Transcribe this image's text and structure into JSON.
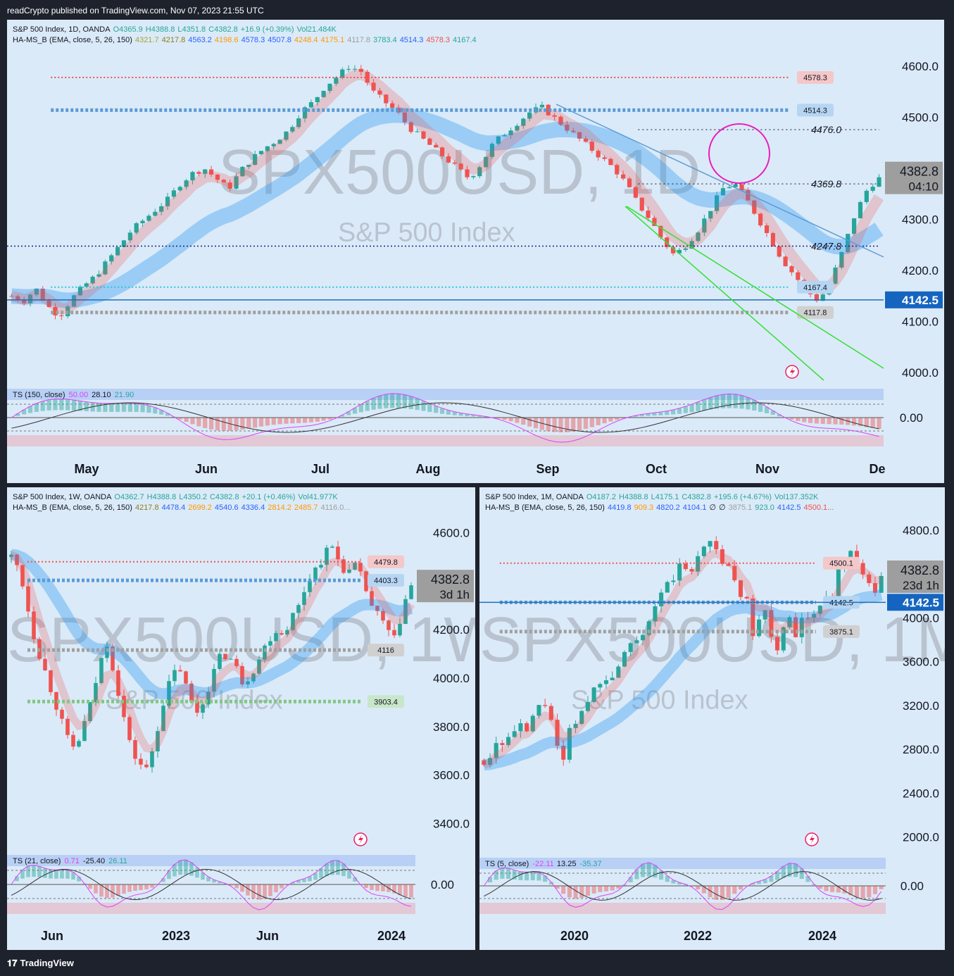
{
  "header": {
    "published": "readCrypto published on TradingView.com, Nov 07, 2023 21:55 UTC"
  },
  "footer": {
    "brand": "TradingView",
    "logo_icon": "tradingview-logo-icon"
  },
  "colors": {
    "up": "#26a69a",
    "down": "#ef5350",
    "blue": "#2962ff",
    "orange": "#ff9800",
    "olive": "#a5a537",
    "grey": "#9e9e9e"
  },
  "panels": {
    "daily": {
      "legend1": [
        "S&P 500 Index, 1D, OANDA",
        "O4365.9",
        "H4388.8",
        "L4351.8",
        "C4382.8",
        "+16.9 (+0.39%)",
        "Vol21.484K"
      ],
      "legend2": [
        "HA-MS_B (EMA, close, 5, 26, 150)",
        "4321.7",
        "4217.8",
        "4563.2",
        "4198.6",
        "4578.3",
        "4507.8",
        "4248.4",
        "4175.1",
        "4117.8",
        "3783.4",
        "4514.3",
        "4578.3",
        "4167.4"
      ],
      "legend2_colors": [
        "#131722",
        "#a5a537",
        "#8a7f1a",
        "#2962ff",
        "#ff9800",
        "#2962ff",
        "#2962ff",
        "#ff9800",
        "#ff9800",
        "#9e9e9e",
        "#26a69a",
        "#2962ff",
        "#ef5350",
        "#26a69a"
      ],
      "watermark_big": "SPX500USD, 1D",
      "watermark_small": "S&P 500 Index",
      "osc_legend": [
        "TS (150, close)",
        "50.00",
        "28.10",
        "21.90"
      ],
      "osc_zero": "0.00",
      "x_labels": [
        "May",
        "Jun",
        "Jul",
        "Aug",
        "Sep",
        "Oct",
        "Nov",
        "De"
      ],
      "y_ticks": [
        "4600.0",
        "4500.0",
        "4400.0",
        "4300.0",
        "4200.0",
        "4100.0",
        "4000.0"
      ],
      "levels": [
        {
          "label": "4578.3",
          "value": 4578.3,
          "style": "red"
        },
        {
          "label": "4514.3",
          "value": 4514.3,
          "style": "blue"
        },
        {
          "label": "4476.0",
          "value": 4476.0,
          "style": "dotted"
        },
        {
          "label": "4369.8",
          "value": 4369.8,
          "style": "dotted"
        },
        {
          "label": "4247.8",
          "value": 4247.8,
          "style": "navy"
        },
        {
          "label": "4167.4",
          "value": 4167.4,
          "style": "teal"
        },
        {
          "label": "4117.8",
          "value": 4117.8,
          "style": "grey"
        }
      ],
      "price": {
        "value": "4382.8",
        "timer": "04:10"
      },
      "hline": {
        "label": "4142.5",
        "value": 4142.5
      }
    },
    "weekly": {
      "legend1": [
        "S&P 500 Index, 1W, OANDA",
        "O4362.7",
        "H4388.8",
        "L4350.2",
        "C4382.8",
        "+20.1 (+0.46%)",
        "Vol41.977K"
      ],
      "legend2": [
        "HA-MS_B (EMA, close, 5, 26, 150)",
        "4217.8",
        "4478.4",
        "2699.2",
        "4540.6",
        "4336.4",
        "2814.2",
        "2485.7",
        "4116.0..."
      ],
      "legend2_colors": [
        "#131722",
        "#8a7f1a",
        "#2962ff",
        "#ff9800",
        "#2962ff",
        "#2962ff",
        "#ff9800",
        "#ff9800",
        "#9e9e9e"
      ],
      "watermark_big": "SPX500USD, 1W",
      "watermark_small": "S&P 500 Index",
      "osc_legend": [
        "TS (21, close)",
        "0.71",
        "-25.40",
        "26.11"
      ],
      "osc_zero": "0.00",
      "x_labels": [
        "Jun",
        "2023",
        "Jun",
        "2024"
      ],
      "y_ticks": [
        "4600.0",
        "4400.0",
        "4200.0",
        "4000.0",
        "3800.0",
        "3600.0",
        "3400.0"
      ],
      "levels": [
        {
          "label": "4479.8",
          "value": 4479.8,
          "style": "red"
        },
        {
          "label": "4403.3",
          "value": 4403.3,
          "style": "blue"
        },
        {
          "label": "4116",
          "value": 4116,
          "style": "grey"
        },
        {
          "label": "3903.4",
          "value": 3903.4,
          "style": "green"
        }
      ],
      "price": {
        "value": "4382.8",
        "timer": "3d 1h"
      }
    },
    "monthly": {
      "legend1": [
        "S&P 500 Index, 1M, OANDA",
        "O4187.2",
        "H4388.8",
        "L4175.1",
        "C4382.8",
        "+195.6 (+4.67%)",
        "Vol137.352K"
      ],
      "legend2": [
        "HA-MS_B (EMA, close, 5, 26, 150)",
        "4419.8",
        "909.3",
        "4820.2",
        "4104.1",
        "∅",
        "∅",
        "3875.1",
        "923.0",
        "4142.5",
        "4500.1..."
      ],
      "legend2_colors": [
        "#131722",
        "#2962ff",
        "#ff9800",
        "#2962ff",
        "#2962ff",
        "#131722",
        "#131722",
        "#9e9e9e",
        "#26a69a",
        "#2962ff",
        "#ef5350"
      ],
      "watermark_big": "SPX500USD, 1M",
      "watermark_small": "S&P 500 Index",
      "osc_legend": [
        "TS (5, close)",
        "-22.11",
        "13.25",
        "-35.37"
      ],
      "osc_zero": "0.00",
      "x_labels": [
        "2020",
        "2022",
        "2024"
      ],
      "y_ticks": [
        "4800.0",
        "4400.0",
        "4000.0",
        "3600.0",
        "3200.0",
        "2800.0",
        "2400.0",
        "2000.0"
      ],
      "levels": [
        {
          "label": "4500.1",
          "value": 4500.1,
          "style": "red"
        },
        {
          "label": "4142.5",
          "value": 4142.5,
          "style": "blue"
        },
        {
          "label": "3875.1",
          "value": 3875.1,
          "style": "grey"
        }
      ],
      "price": {
        "value": "4382.8",
        "timer": "23d 1h"
      },
      "hline": {
        "label": "4142.5",
        "value": 4142.5
      }
    }
  },
  "chart_data": [
    {
      "type": "candlestick",
      "title": "S&P 500 Index, 1D, OANDA",
      "x_labels": [
        "May",
        "Jun",
        "Jul",
        "Aug",
        "Sep",
        "Oct",
        "Nov",
        "De"
      ],
      "ylim": [
        3985,
        4650
      ],
      "close_path": [
        4150,
        4140,
        4165,
        4130,
        4110,
        4145,
        4170,
        4190,
        4220,
        4250,
        4280,
        4300,
        4320,
        4340,
        4370,
        4390,
        4400,
        4380,
        4360,
        4395,
        4420,
        4440,
        4455,
        4475,
        4510,
        4530,
        4560,
        4580,
        4600,
        4590,
        4550,
        4530,
        4510,
        4480,
        4460,
        4440,
        4420,
        4400,
        4380,
        4410,
        4450,
        4470,
        4490,
        4510,
        4520,
        4500,
        4480,
        4460,
        4440,
        4420,
        4400,
        4370,
        4330,
        4300,
        4260,
        4230,
        4250,
        4280,
        4320,
        4360,
        4370,
        4340,
        4300,
        4260,
        4220,
        4190,
        4160,
        4140,
        4180,
        4240,
        4310,
        4358,
        4382.8
      ],
      "last_close": 4382.8,
      "levels": [
        4578.3,
        4514.3,
        4476.0,
        4369.8,
        4247.8,
        4167.4,
        4142.5,
        4117.8
      ]
    },
    {
      "type": "candlestick",
      "title": "S&P 500 Index, 1W, OANDA",
      "x_labels": [
        "Jun",
        "2023",
        "Jun",
        "2024"
      ],
      "ylim": [
        3300,
        4700
      ],
      "close_path": [
        4500,
        4450,
        4300,
        4150,
        4050,
        3950,
        3850,
        3750,
        3700,
        3800,
        3900,
        4050,
        4150,
        4000,
        3850,
        3700,
        3650,
        3620,
        3750,
        3900,
        4000,
        4050,
        3950,
        3850,
        3900,
        4000,
        4080,
        4100,
        4050,
        3980,
        4020,
        4080,
        4150,
        4200,
        4180,
        4250,
        4300,
        4400,
        4450,
        4500,
        4550,
        4480,
        4430,
        4460,
        4400,
        4300,
        4250,
        4200,
        4150,
        4300,
        4382.8
      ],
      "last_close": 4382.8,
      "levels": [
        4479.8,
        4403.3,
        4116,
        3903.4
      ]
    },
    {
      "type": "candlestick",
      "title": "S&P 500 Index, 1M, OANDA",
      "x_labels": [
        "2020",
        "2022",
        "2024"
      ],
      "ylim": [
        1900,
        5000
      ],
      "close_path": [
        2700,
        2750,
        2900,
        2850,
        2950,
        3000,
        2950,
        3100,
        3200,
        3230,
        2900,
        2600,
        2950,
        3050,
        3150,
        3300,
        3400,
        3500,
        3400,
        3600,
        3750,
        3800,
        3850,
        3950,
        4100,
        4200,
        4300,
        4400,
        4500,
        4350,
        4550,
        4650,
        4750,
        4550,
        4400,
        4500,
        4150,
        4150,
        3800,
        4100,
        4000,
        3650,
        3850,
        4050,
        3850,
        4000,
        3950,
        4100,
        4150,
        4200,
        4450,
        4550,
        4600,
        4500,
        4300,
        4200,
        4382.8
      ],
      "last_close": 4382.8,
      "levels": [
        4500.1,
        4142.5,
        3875.1
      ]
    }
  ]
}
